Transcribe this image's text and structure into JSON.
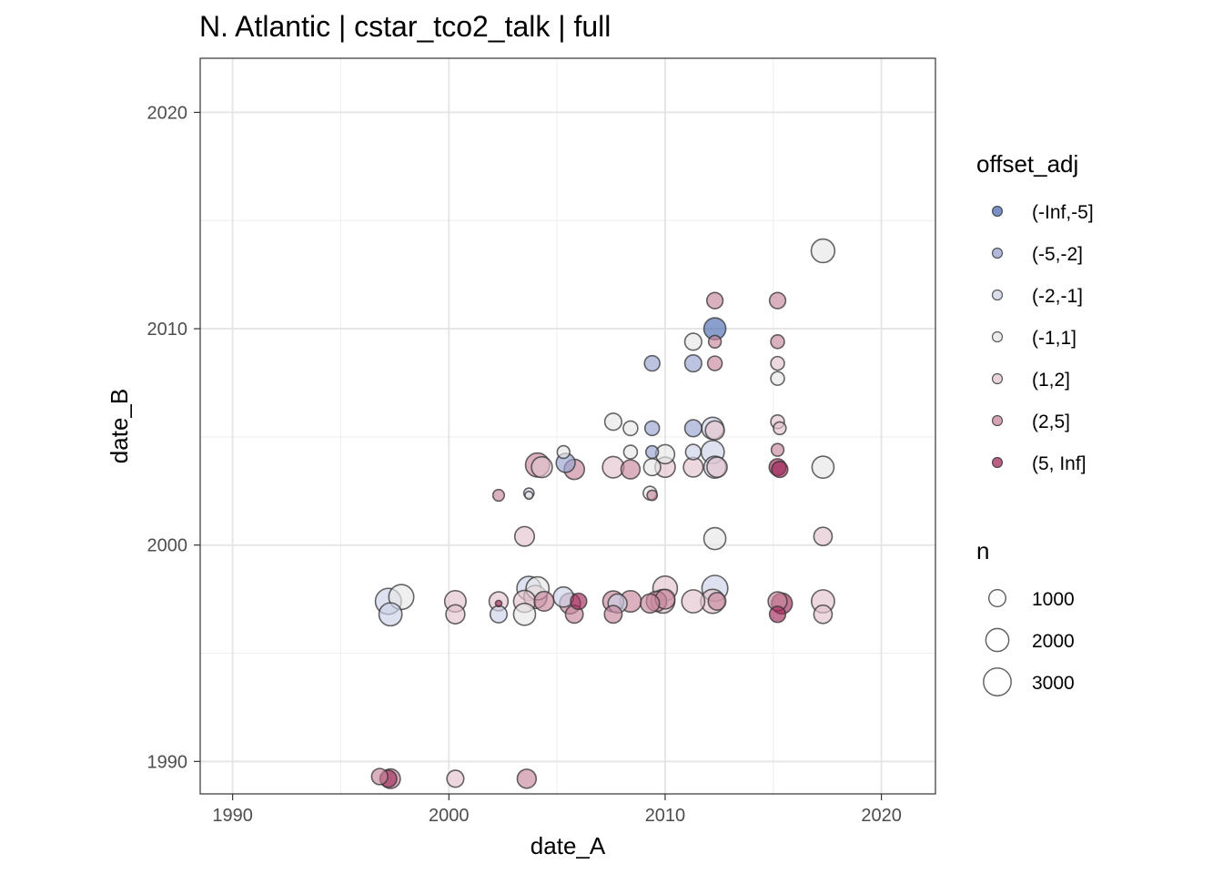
{
  "chart_data": {
    "type": "scatter",
    "title": "N. Atlantic | cstar_tco2_talk | full",
    "xlabel": "date_A",
    "ylabel": "date_B",
    "xlim": [
      1988.5,
      2022.5
    ],
    "ylim": [
      1988.5,
      2022.5
    ],
    "x_ticks": [
      1990,
      2000,
      2010,
      2020
    ],
    "y_ticks": [
      1990,
      2000,
      2010,
      2020
    ],
    "grid": true,
    "colors": {
      "(-Inf,-5]": "#4d6bb0",
      "(-5,-2]": "#97a3cf",
      "(-2,-1]": "#ccd1e6",
      "(-1,1]": "#e6e6e6",
      "(1,2]": "#e2c3cc",
      "(2,5]": "#c8879c",
      "(5, Inf]": "#a1295a"
    },
    "legend": {
      "placement": "right",
      "color_title": "offset_adj",
      "color_entries": [
        "(-Inf,-5]",
        "(-5,-2]",
        "(-2,-1]",
        "(-1,1]",
        "(1,2]",
        "(2,5]",
        "(5, Inf]"
      ],
      "size_title": "n",
      "size_entries": [
        1000,
        2000,
        3000
      ]
    },
    "points": [
      {
        "x": 1996.8,
        "y": 1989.3,
        "cat": "(2,5]",
        "n": 900
      },
      {
        "x": 1997.3,
        "y": 1989.2,
        "cat": "(2,5]",
        "n": 1400
      },
      {
        "x": 1997.2,
        "y": 1989.2,
        "cat": "(5, Inf]",
        "n": 1000
      },
      {
        "x": 2000.3,
        "y": 1989.2,
        "cat": "(1,2]",
        "n": 1000
      },
      {
        "x": 2003.6,
        "y": 1989.2,
        "cat": "(2,5]",
        "n": 1300
      },
      {
        "x": 1997.2,
        "y": 1997.4,
        "cat": "(-2,-1]",
        "n": 2600
      },
      {
        "x": 1997.3,
        "y": 1996.8,
        "cat": "(-2,-1]",
        "n": 2000
      },
      {
        "x": 1997.8,
        "y": 1997.6,
        "cat": "(-1,1]",
        "n": 2400
      },
      {
        "x": 2000.3,
        "y": 1997.4,
        "cat": "(1,2]",
        "n": 1700
      },
      {
        "x": 2000.3,
        "y": 1996.8,
        "cat": "(1,2]",
        "n": 1300
      },
      {
        "x": 2002.3,
        "y": 1997.4,
        "cat": "(1,2]",
        "n": 1300
      },
      {
        "x": 2002.3,
        "y": 1996.8,
        "cat": "(-2,-1]",
        "n": 1000
      },
      {
        "x": 2002.3,
        "y": 1997.3,
        "cat": "(5, Inf]",
        "n": 80
      },
      {
        "x": 2003.5,
        "y": 1997.4,
        "cat": "(1,2]",
        "n": 1800
      },
      {
        "x": 2003.5,
        "y": 1996.8,
        "cat": "(-1,1]",
        "n": 1800
      },
      {
        "x": 2003.7,
        "y": 1998.0,
        "cat": "(-2,-1]",
        "n": 2200
      },
      {
        "x": 2004.0,
        "y": 1997.6,
        "cat": "(1,2]",
        "n": 2000
      },
      {
        "x": 2004.1,
        "y": 1998.0,
        "cat": "(-1,1]",
        "n": 2000
      },
      {
        "x": 2004.4,
        "y": 1997.4,
        "cat": "(2,5]",
        "n": 1400
      },
      {
        "x": 2005.3,
        "y": 1997.6,
        "cat": "(-2,-1]",
        "n": 1500
      },
      {
        "x": 2005.6,
        "y": 1997.3,
        "cat": "(2,5]",
        "n": 1600
      },
      {
        "x": 2005.8,
        "y": 1996.8,
        "cat": "(2,5]",
        "n": 1100
      },
      {
        "x": 2006.0,
        "y": 1997.4,
        "cat": "(5, Inf]",
        "n": 900
      },
      {
        "x": 2007.6,
        "y": 1997.4,
        "cat": "(2,5]",
        "n": 1600
      },
      {
        "x": 2007.6,
        "y": 1996.8,
        "cat": "(2,5]",
        "n": 1100
      },
      {
        "x": 2007.8,
        "y": 1997.3,
        "cat": "(-2,-1]",
        "n": 1300
      },
      {
        "x": 2008.4,
        "y": 1997.4,
        "cat": "(2,5]",
        "n": 1700
      },
      {
        "x": 2009.3,
        "y": 1997.3,
        "cat": "(2,5]",
        "n": 1300
      },
      {
        "x": 2009.6,
        "y": 1997.4,
        "cat": "(2,5]",
        "n": 1500
      },
      {
        "x": 2009.9,
        "y": 1997.4,
        "cat": "(1,2]",
        "n": 2100
      },
      {
        "x": 2010.0,
        "y": 1998.0,
        "cat": "(1,2]",
        "n": 2300
      },
      {
        "x": 2010.0,
        "y": 1997.5,
        "cat": "(2,5]",
        "n": 1400
      },
      {
        "x": 2011.3,
        "y": 1997.4,
        "cat": "(1,2]",
        "n": 2000
      },
      {
        "x": 2012.2,
        "y": 1997.4,
        "cat": "(1,2]",
        "n": 2200
      },
      {
        "x": 2012.3,
        "y": 1998.0,
        "cat": "(-2,-1]",
        "n": 2600
      },
      {
        "x": 2012.4,
        "y": 1997.4,
        "cat": "(2,5]",
        "n": 1100
      },
      {
        "x": 2015.2,
        "y": 1997.4,
        "cat": "(2,5]",
        "n": 1300
      },
      {
        "x": 2015.2,
        "y": 1996.8,
        "cat": "(5, Inf]",
        "n": 900
      },
      {
        "x": 2015.4,
        "y": 1997.3,
        "cat": "(5, Inf]",
        "n": 1600
      },
      {
        "x": 2017.3,
        "y": 1997.4,
        "cat": "(1,2]",
        "n": 2000
      },
      {
        "x": 2017.3,
        "y": 1996.8,
        "cat": "(1,2]",
        "n": 1200
      },
      {
        "x": 2003.5,
        "y": 2000.4,
        "cat": "(1,2]",
        "n": 1400
      },
      {
        "x": 2012.3,
        "y": 2000.3,
        "cat": "(-1,1]",
        "n": 1800
      },
      {
        "x": 2017.3,
        "y": 2000.4,
        "cat": "(1,2]",
        "n": 1200
      },
      {
        "x": 2002.3,
        "y": 2002.3,
        "cat": "(2,5]",
        "n": 400
      },
      {
        "x": 2003.7,
        "y": 2002.4,
        "cat": "(-2,-1]",
        "n": 300
      },
      {
        "x": 2003.7,
        "y": 2002.3,
        "cat": "(-1,1]",
        "n": 150
      },
      {
        "x": 2009.3,
        "y": 2002.4,
        "cat": "(-1,1]",
        "n": 600
      },
      {
        "x": 2009.4,
        "y": 2002.3,
        "cat": "(2,5]",
        "n": 300
      },
      {
        "x": 2004.1,
        "y": 2003.7,
        "cat": "(2,5]",
        "n": 2200
      },
      {
        "x": 2004.3,
        "y": 2003.6,
        "cat": "(1,2]",
        "n": 1600
      },
      {
        "x": 2005.3,
        "y": 2004.3,
        "cat": "(-1,1]",
        "n": 500
      },
      {
        "x": 2005.4,
        "y": 2003.8,
        "cat": "(-5,-2]",
        "n": 1300
      },
      {
        "x": 2005.8,
        "y": 2003.5,
        "cat": "(2,5]",
        "n": 1500
      },
      {
        "x": 2007.6,
        "y": 2005.7,
        "cat": "(-1,1]",
        "n": 1000
      },
      {
        "x": 2007.6,
        "y": 2003.6,
        "cat": "(1,2]",
        "n": 1700
      },
      {
        "x": 2008.4,
        "y": 2005.4,
        "cat": "(-1,1]",
        "n": 700
      },
      {
        "x": 2008.4,
        "y": 2004.3,
        "cat": "(-1,1]",
        "n": 600
      },
      {
        "x": 2008.4,
        "y": 2003.5,
        "cat": "(2,5]",
        "n": 1300
      },
      {
        "x": 2009.4,
        "y": 2008.4,
        "cat": "(-5,-2]",
        "n": 800
      },
      {
        "x": 2009.4,
        "y": 2005.4,
        "cat": "(-5,-2]",
        "n": 700
      },
      {
        "x": 2009.4,
        "y": 2004.3,
        "cat": "(-5,-2]",
        "n": 500
      },
      {
        "x": 2009.4,
        "y": 2003.6,
        "cat": "(-1,1]",
        "n": 1000
      },
      {
        "x": 2010.0,
        "y": 2004.2,
        "cat": "(-1,1]",
        "n": 1300
      },
      {
        "x": 2010.0,
        "y": 2003.6,
        "cat": "(1,2]",
        "n": 1500
      },
      {
        "x": 2011.3,
        "y": 2009.4,
        "cat": "(-1,1]",
        "n": 1000
      },
      {
        "x": 2011.3,
        "y": 2008.4,
        "cat": "(-5,-2]",
        "n": 1000
      },
      {
        "x": 2011.3,
        "y": 2005.4,
        "cat": "(-5,-2]",
        "n": 1000
      },
      {
        "x": 2011.3,
        "y": 2004.3,
        "cat": "(-2,-1]",
        "n": 800
      },
      {
        "x": 2011.3,
        "y": 2003.6,
        "cat": "(1,2]",
        "n": 1400
      },
      {
        "x": 2012.3,
        "y": 2011.3,
        "cat": "(2,5]",
        "n": 900
      },
      {
        "x": 2012.3,
        "y": 2010.0,
        "cat": "(-Inf,-5]",
        "n": 1800
      },
      {
        "x": 2012.3,
        "y": 2009.4,
        "cat": "(2,5]",
        "n": 500
      },
      {
        "x": 2012.3,
        "y": 2008.4,
        "cat": "(2,5]",
        "n": 700
      },
      {
        "x": 2012.2,
        "y": 2005.4,
        "cat": "(-2,-1]",
        "n": 1800
      },
      {
        "x": 2012.3,
        "y": 2005.3,
        "cat": "(1,2]",
        "n": 1300
      },
      {
        "x": 2012.2,
        "y": 2004.3,
        "cat": "(-2,-1]",
        "n": 2000
      },
      {
        "x": 2012.3,
        "y": 2003.6,
        "cat": "(-2,-1]",
        "n": 1800
      },
      {
        "x": 2012.4,
        "y": 2003.6,
        "cat": "(1,2]",
        "n": 1500
      },
      {
        "x": 2015.2,
        "y": 2011.3,
        "cat": "(2,5]",
        "n": 900
      },
      {
        "x": 2015.2,
        "y": 2009.4,
        "cat": "(2,5]",
        "n": 600
      },
      {
        "x": 2015.2,
        "y": 2008.4,
        "cat": "(1,2]",
        "n": 600
      },
      {
        "x": 2015.2,
        "y": 2007.7,
        "cat": "(-1,1]",
        "n": 600
      },
      {
        "x": 2015.2,
        "y": 2005.7,
        "cat": "(1,2]",
        "n": 600
      },
      {
        "x": 2015.3,
        "y": 2005.4,
        "cat": "(1,2]",
        "n": 500
      },
      {
        "x": 2015.2,
        "y": 2004.4,
        "cat": "(2,5]",
        "n": 500
      },
      {
        "x": 2015.2,
        "y": 2003.6,
        "cat": "(5, Inf]",
        "n": 1000
      },
      {
        "x": 2015.3,
        "y": 2003.5,
        "cat": "(5, Inf]",
        "n": 900
      },
      {
        "x": 2017.3,
        "y": 2013.6,
        "cat": "(-1,1]",
        "n": 2100
      },
      {
        "x": 2017.3,
        "y": 2003.6,
        "cat": "(-1,1]",
        "n": 1800
      }
    ]
  }
}
